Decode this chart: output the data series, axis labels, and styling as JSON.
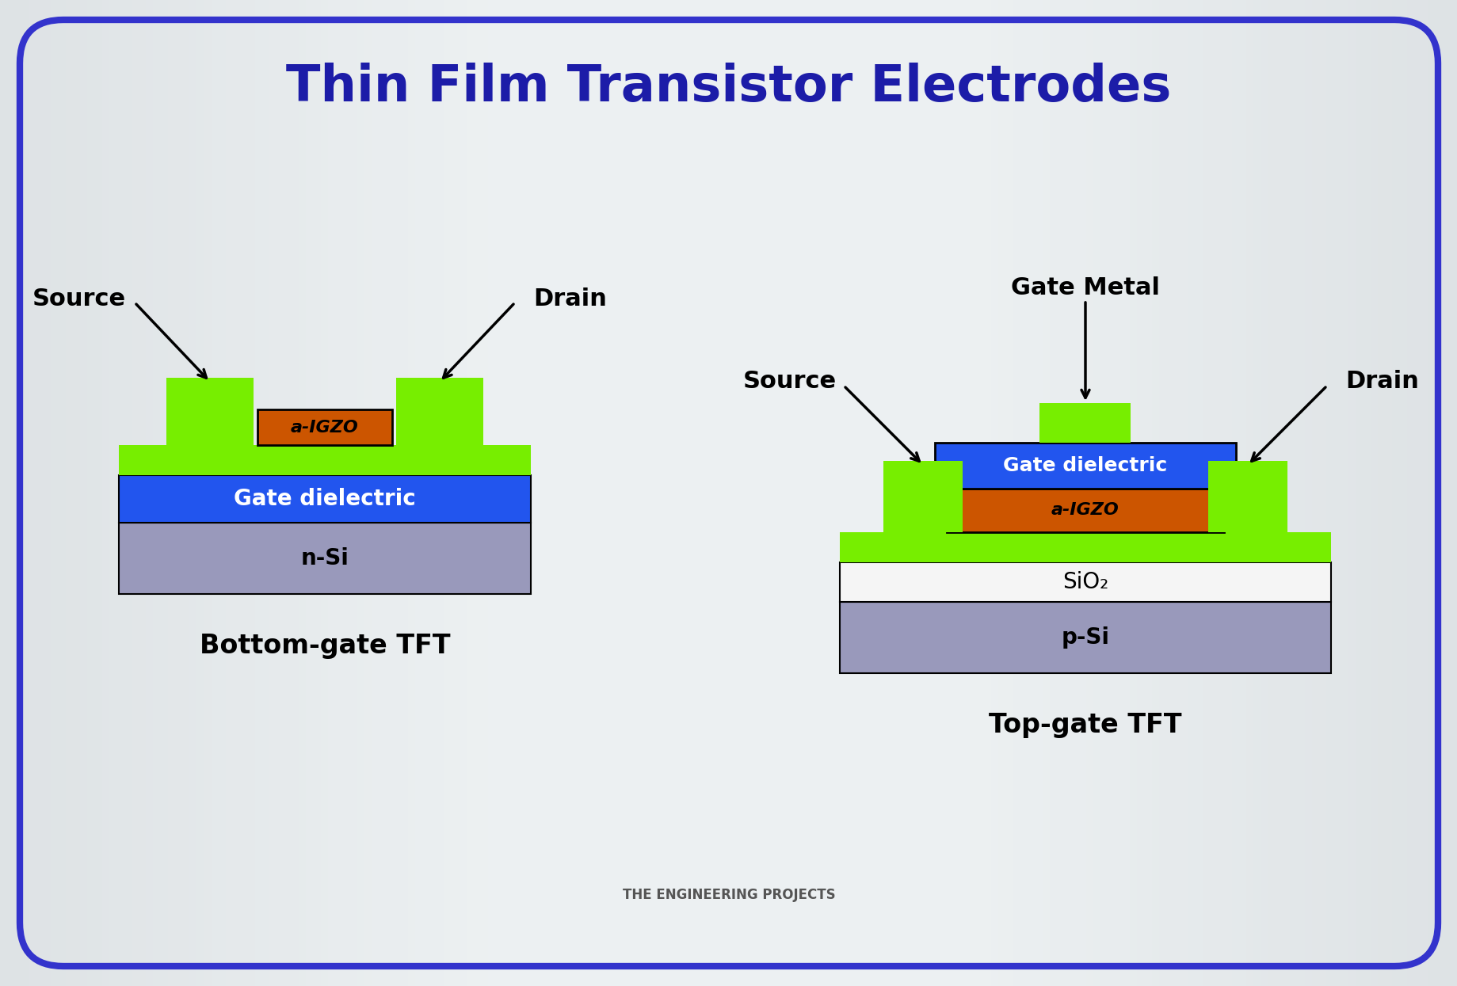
{
  "title": "Thin Film Transistor Electrodes",
  "title_color": "#1c1ca8",
  "title_fontsize": 46,
  "bg_color": "#e8ecee",
  "bg_center_color": "#f5f7f8",
  "border_color": "#3333cc",
  "border_width": 6,
  "colors": {
    "green_electrode": "#77ee00",
    "orange_igzo": "#cc5500",
    "blue_dielectric": "#2255ee",
    "gray_si": "#9999bb",
    "white_sio2": "#f5f5f5",
    "black": "#000000",
    "white": "#ffffff",
    "dark_green": "#33aa00"
  },
  "bottom_gate_label": "Bottom-gate TFT",
  "top_gate_label": "Top-gate TFT",
  "source_label": "Source",
  "drain_label": "Drain",
  "gate_metal_label": "Gate Metal",
  "igzo_label": "a-IGZO",
  "gate_dielectric_label": "Gate dielectric",
  "nsi_label": "n-Si",
  "psi_label": "p-Si",
  "sio2_label": "SiO₂"
}
